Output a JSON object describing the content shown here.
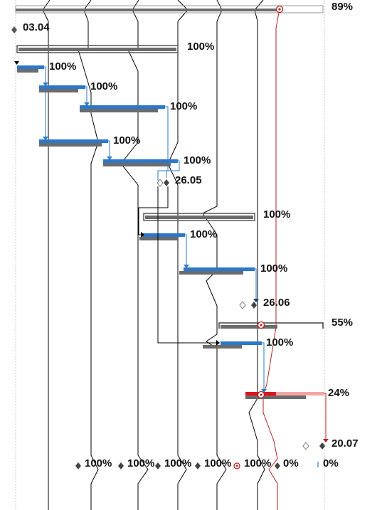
{
  "colors": {
    "plan_bar": "#6b6b6b",
    "actual_bar": "#2b78c8",
    "link_arrow": "#2b78c8",
    "critical_line": "#b22222",
    "critical_progress": "#e3121a",
    "critical_remaining": "#f4a6a6",
    "progress_line": "#000000",
    "grid": "#bdbdbd"
  },
  "tasks": [
    {
      "label": "89%",
      "kind": "summary",
      "status": "critical-progress-line"
    },
    {
      "label": "03.04",
      "kind": "milestone"
    },
    {
      "label": "100%",
      "kind": "summary"
    },
    {
      "label": "100%",
      "kind": "task"
    },
    {
      "label": "100%",
      "kind": "task"
    },
    {
      "label": "100%",
      "kind": "task"
    },
    {
      "label": "100%",
      "kind": "task"
    },
    {
      "label": "100%",
      "kind": "task"
    },
    {
      "label": "26.05",
      "kind": "milestone"
    },
    {
      "label": "100%",
      "kind": "summary"
    },
    {
      "label": "100%",
      "kind": "task"
    },
    {
      "label": "100%",
      "kind": "task"
    },
    {
      "label": "26.06",
      "kind": "milestone"
    },
    {
      "label": "55%",
      "kind": "summary"
    },
    {
      "label": "100%",
      "kind": "task"
    },
    {
      "label": "24%",
      "kind": "task"
    },
    {
      "label": "20.07",
      "kind": "milestone"
    }
  ],
  "bottom_row": [
    "100%",
    "100%",
    "100%",
    "100%",
    "100%",
    "0%",
    "0%"
  ]
}
